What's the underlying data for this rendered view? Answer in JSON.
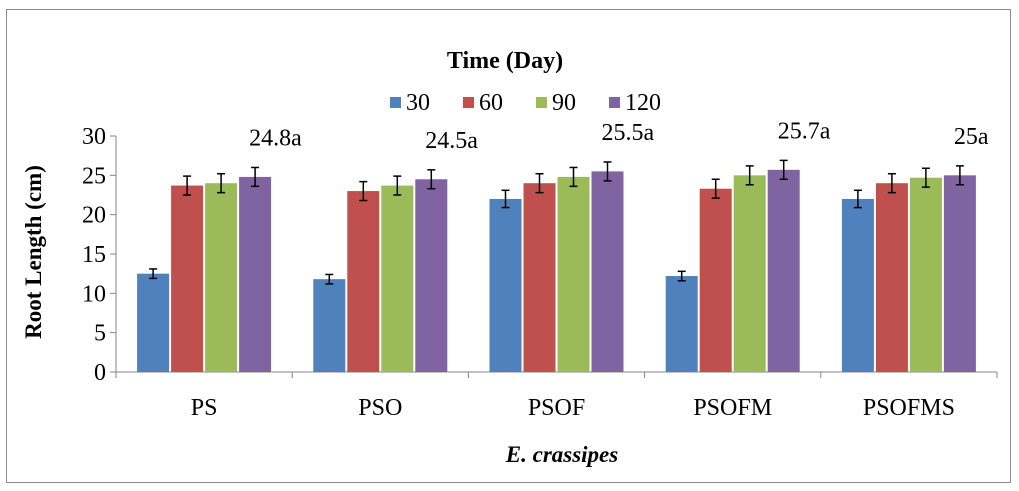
{
  "chart_data": {
    "type": "bar",
    "title": "",
    "legend_title": "Time (Day)",
    "legend_position": "top",
    "xlabel": "E. crassipes",
    "ylabel": "Root Length (cm)",
    "ylim": [
      0,
      30
    ],
    "yticks": [
      0,
      5,
      10,
      15,
      20,
      25,
      30
    ],
    "grid": false,
    "categories": [
      "PS",
      "PSO",
      "PSOF",
      "PSOFM",
      "PSOFMS"
    ],
    "series": [
      {
        "name": "30",
        "color": "#4f81bd",
        "values": [
          12.5,
          11.8,
          22.0,
          12.2,
          22.0
        ],
        "errors": [
          0.6,
          0.6,
          1.1,
          0.6,
          1.1
        ]
      },
      {
        "name": "60",
        "color": "#c0504d",
        "values": [
          23.7,
          23.0,
          24.0,
          23.3,
          24.0
        ],
        "errors": [
          1.2,
          1.2,
          1.2,
          1.2,
          1.2
        ]
      },
      {
        "name": "90",
        "color": "#9bbb59",
        "values": [
          24.0,
          23.7,
          24.8,
          25.0,
          24.7
        ],
        "errors": [
          1.2,
          1.2,
          1.2,
          1.2,
          1.2
        ]
      },
      {
        "name": "120",
        "color": "#8064a2",
        "values": [
          24.8,
          24.5,
          25.5,
          25.7,
          25.0
        ],
        "errors": [
          1.2,
          1.2,
          1.2,
          1.2,
          1.2
        ]
      }
    ],
    "annotations": [
      "24.8a",
      "24.5a",
      "25.5a",
      "25.7a",
      "25a"
    ]
  }
}
